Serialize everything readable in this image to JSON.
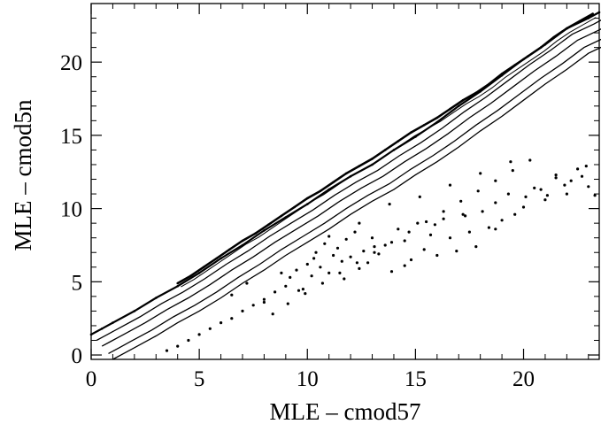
{
  "chart_data": {
    "type": "scatter",
    "title": "",
    "xlabel": "MLE  – cmod57",
    "ylabel": "MLE  – cmod5n",
    "xlim": [
      0,
      23.5
    ],
    "ylim": [
      -0.3,
      24
    ],
    "xticks": [
      0,
      5,
      10,
      15,
      20
    ],
    "yticks": [
      0,
      5,
      10,
      15,
      20
    ],
    "grid": false,
    "legend": "none",
    "colors": {
      "ink": "#000000",
      "background": "#ffffff"
    },
    "series": [
      {
        "kind": "scatter-main-band-points",
        "x": [
          0.0,
          0.5,
          1.0,
          2.0,
          3.0,
          4.0,
          5.0,
          6.0,
          7.0,
          8.0,
          9.0,
          10.0,
          11.0,
          12.0,
          13.0,
          14.0,
          15.0,
          16.0,
          17.0,
          18.0,
          19.0,
          20.0,
          21.0,
          22.0,
          23.0,
          23.5
        ],
        "y": [
          1.4,
          1.8,
          2.2,
          3.0,
          3.9,
          4.7,
          5.6,
          6.6,
          7.5,
          8.5,
          9.4,
          10.3,
          11.3,
          12.2,
          13.0,
          14.0,
          14.9,
          15.9,
          17.0,
          18.0,
          19.1,
          20.2,
          21.2,
          22.3,
          23.0,
          23.4
        ]
      },
      {
        "kind": "scatter-upper-edge-dense",
        "x": [
          4.0,
          4.6,
          5.2,
          5.8,
          6.4,
          7.0,
          7.6,
          8.2,
          8.8,
          9.4,
          10.0,
          10.6,
          11.2,
          11.8,
          12.4,
          13.0,
          13.6,
          14.2,
          14.8,
          15.4,
          16.0,
          16.6,
          17.2,
          17.8,
          18.4,
          19.0,
          19.6,
          20.2,
          20.8,
          21.4,
          22.0,
          22.6,
          23.2
        ],
        "y": [
          4.9,
          5.4,
          6.0,
          6.6,
          7.2,
          7.8,
          8.3,
          8.9,
          9.5,
          10.1,
          10.7,
          11.2,
          11.8,
          12.4,
          12.9,
          13.4,
          14.0,
          14.6,
          15.2,
          15.7,
          16.2,
          16.8,
          17.4,
          17.9,
          18.5,
          19.2,
          19.8,
          20.4,
          21.0,
          21.7,
          22.3,
          22.8,
          23.3
        ]
      },
      {
        "kind": "scatter-offband-points",
        "x": [
          3.5,
          4.0,
          4.5,
          5.0,
          5.5,
          6.0,
          6.5,
          7.0,
          7.5,
          8.0,
          8.5,
          9.0,
          9.2,
          9.5,
          9.8,
          10.0,
          10.2,
          10.4,
          10.6,
          10.8,
          11.0,
          11.2,
          11.4,
          11.6,
          11.8,
          12.0,
          12.2,
          12.4,
          12.6,
          12.8,
          13.0,
          13.3,
          13.6,
          13.9,
          14.2,
          14.5,
          14.8,
          15.1,
          15.4,
          15.7,
          16.0,
          16.3,
          16.6,
          16.9,
          17.2,
          17.5,
          17.8,
          18.1,
          18.4,
          18.7,
          19.0,
          19.3,
          19.6,
          20.0,
          20.5,
          21.0,
          21.5,
          22.0,
          22.5,
          23.0,
          6.5,
          7.2,
          8.0,
          8.8,
          9.6,
          10.3,
          11.0,
          11.7,
          12.4,
          13.1,
          13.8,
          14.5,
          15.2,
          15.9,
          16.6,
          17.3,
          18.0,
          18.7,
          19.4,
          20.1,
          20.8,
          21.5,
          22.2,
          22.9,
          8.4,
          9.1,
          9.9,
          10.7,
          11.5,
          12.3,
          13.1,
          13.9,
          14.7,
          15.5,
          16.3,
          17.1,
          17.9,
          18.7,
          19.5,
          20.3,
          21.1,
          21.9,
          22.7,
          23.3
        ],
        "y": [
          0.3,
          0.6,
          1.0,
          1.4,
          1.8,
          2.2,
          2.5,
          3.0,
          3.4,
          3.8,
          4.3,
          4.7,
          5.3,
          5.8,
          4.5,
          6.2,
          5.4,
          7.0,
          6.0,
          7.6,
          5.6,
          6.8,
          7.3,
          6.4,
          7.9,
          6.7,
          8.4,
          5.9,
          7.1,
          6.3,
          8.0,
          6.9,
          7.5,
          5.7,
          8.6,
          7.8,
          6.5,
          9.0,
          7.2,
          8.2,
          6.8,
          9.3,
          8.0,
          7.1,
          9.6,
          8.4,
          7.4,
          9.8,
          8.7,
          10.4,
          9.2,
          11.0,
          9.6,
          10.1,
          11.4,
          10.6,
          12.3,
          11.0,
          12.7,
          11.5,
          4.1,
          4.9,
          3.6,
          5.6,
          4.4,
          6.6,
          8.1,
          5.2,
          9.0,
          7.4,
          10.3,
          6.1,
          10.8,
          8.9,
          11.6,
          9.5,
          12.4,
          8.6,
          13.2,
          10.8,
          11.3,
          12.1,
          11.9,
          12.9,
          2.8,
          3.5,
          4.2,
          4.9,
          5.6,
          6.3,
          7.0,
          7.7,
          8.4,
          9.1,
          9.8,
          10.5,
          11.2,
          11.9,
          12.6,
          13.3,
          10.9,
          11.6,
          12.2,
          10.9
        ]
      }
    ]
  }
}
